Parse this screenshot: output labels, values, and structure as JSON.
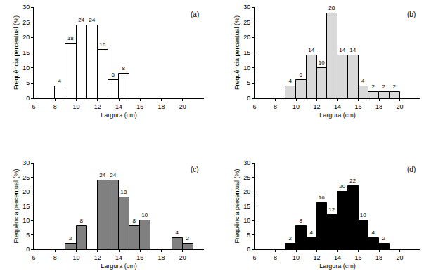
{
  "chart_data": [
    {
      "type": "histogram",
      "title": "(a)",
      "x_label": "Largura (cm)",
      "y_label": "Frequência percentual (%)",
      "bins": [
        8,
        9,
        10,
        11,
        12,
        13,
        14,
        15
      ],
      "values": [
        4,
        18,
        24,
        24,
        16,
        6,
        8
      ],
      "color": "#ffffff",
      "xlim": [
        6,
        22
      ],
      "xticks": [
        6,
        8,
        10,
        12,
        14,
        16,
        18,
        20
      ],
      "ylim": [
        0,
        30
      ],
      "yticks": [
        0,
        5,
        10,
        15,
        20,
        25,
        30
      ],
      "data_labels": true,
      "grid": false
    },
    {
      "type": "histogram",
      "title": "(b)",
      "x_label": "Largura (cm)",
      "y_label": "Frequência percentual (%)",
      "bins": [
        9,
        10,
        11,
        12,
        13,
        14,
        15,
        16,
        17,
        18,
        19,
        20
      ],
      "values": [
        4,
        6,
        14,
        10,
        28,
        14,
        14,
        4,
        2,
        2,
        2
      ],
      "color": "#d9d9d9",
      "xlim": [
        6,
        22
      ],
      "xticks": [
        6,
        8,
        10,
        12,
        14,
        16,
        18,
        20
      ],
      "ylim": [
        0,
        30
      ],
      "yticks": [
        0,
        5,
        10,
        15,
        20,
        25,
        30
      ],
      "data_labels": true,
      "grid": false
    },
    {
      "type": "histogram",
      "title": "(c)",
      "x_label": "Largura (cm)",
      "y_label": "Frequência percentual (%)",
      "bins": [
        9,
        10,
        11,
        12,
        13,
        14,
        15,
        16,
        17,
        18,
        19,
        20,
        21
      ],
      "values": [
        2,
        8,
        null,
        24,
        24,
        18,
        8,
        10,
        null,
        null,
        4,
        2
      ],
      "color": "#808080",
      "xlim": [
        6,
        22
      ],
      "xticks": [
        6,
        8,
        10,
        12,
        14,
        16,
        18,
        20
      ],
      "ylim": [
        0,
        30
      ],
      "yticks": [
        0,
        5,
        10,
        15,
        20,
        25,
        30
      ],
      "data_labels": true,
      "grid": false
    },
    {
      "type": "histogram",
      "title": "(d)",
      "x_label": "Largura (cm)",
      "y_label": "Frequência percentual (%)",
      "bins": [
        9,
        10,
        11,
        12,
        13,
        14,
        15,
        16,
        17,
        18,
        19
      ],
      "values": [
        2,
        8,
        4,
        16,
        12,
        20,
        22,
        10,
        4,
        2
      ],
      "color": "#000000",
      "xlim": [
        6,
        22
      ],
      "xticks": [
        6,
        8,
        10,
        12,
        14,
        16,
        18,
        20
      ],
      "ylim": [
        0,
        30
      ],
      "yticks": [
        0,
        5,
        10,
        15,
        20,
        25,
        30
      ],
      "data_labels": true,
      "grid": false
    }
  ]
}
